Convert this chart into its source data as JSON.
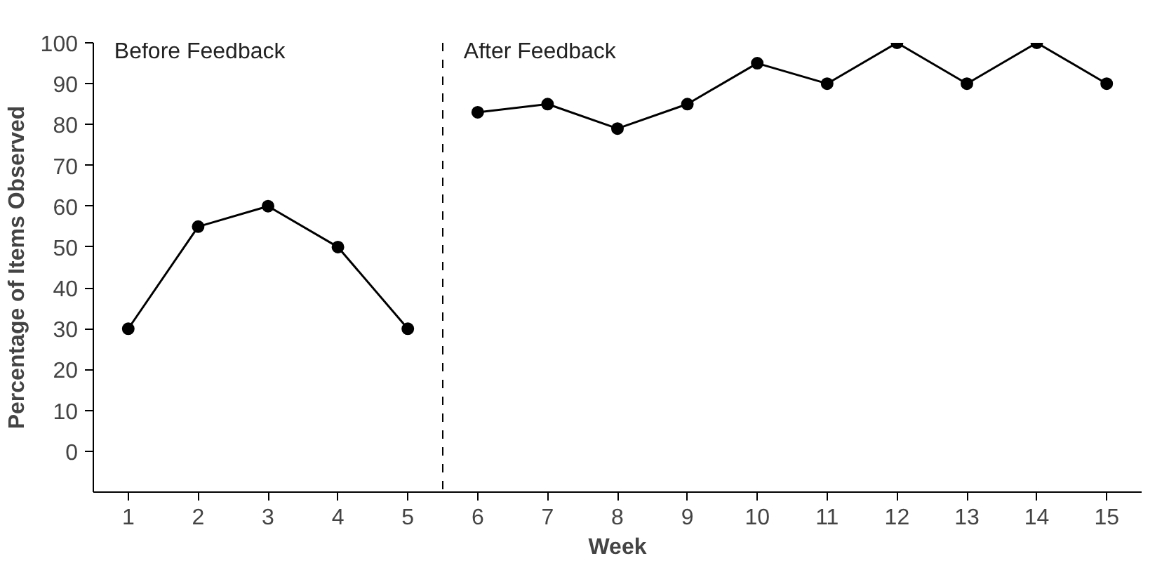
{
  "chart_data": {
    "type": "line",
    "xlabel": "Week",
    "ylabel": "Percentage of Items Observed",
    "xlim": [
      0.5,
      15.5
    ],
    "xticks": [
      1,
      2,
      3,
      4,
      5,
      6,
      7,
      8,
      9,
      10,
      11,
      12,
      13,
      14,
      15
    ],
    "ylim": [
      -10,
      100
    ],
    "yticks": [
      0,
      10,
      20,
      30,
      40,
      50,
      60,
      70,
      80,
      90,
      100
    ],
    "series": [
      {
        "color": "#000000",
        "x": [
          1,
          2,
          3,
          4,
          5
        ],
        "values": [
          30,
          55,
          60,
          50,
          30
        ]
      },
      {
        "color": "#000000",
        "x": [
          6,
          7,
          8,
          9,
          10,
          11,
          12,
          13,
          14,
          15
        ],
        "values": [
          83,
          85,
          79,
          85,
          95,
          90,
          100,
          90,
          100,
          90
        ]
      }
    ],
    "marker": "circle",
    "line_style": "solid",
    "grid": false,
    "ref_lines": [
      {
        "axis": "x",
        "value": 5.5,
        "line_style": "dashed",
        "color": "#000000"
      }
    ],
    "annotations": [
      "Before Feedback",
      "After Feedback"
    ]
  }
}
